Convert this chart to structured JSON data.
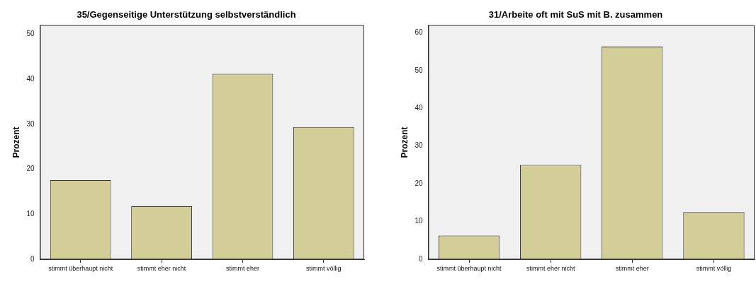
{
  "chart_data": [
    {
      "type": "bar",
      "title": "35/Gegenseitige Unterstützung selbstverständlich",
      "ylabel": "Prozent",
      "categories": [
        "stimmt überhaupt nicht",
        "stimmt eher nicht",
        "stimmt eher",
        "stimmt völlig"
      ],
      "values": [
        17.6,
        11.8,
        41.2,
        29.4
      ],
      "color": "#d3ce97",
      "ylim": [
        0,
        52
      ],
      "yticks": [
        0,
        10,
        20,
        30,
        40,
        50
      ],
      "grid": false,
      "legend": false
    },
    {
      "type": "bar",
      "title": "31/Arbeite oft mit SuS mit B. zusammen",
      "ylabel": "Prozent",
      "categories": [
        "stimmt überhaupt nicht",
        "stimmt eher nicht",
        "stimmt eher",
        "stimmt völlig"
      ],
      "values": [
        6.3,
        25,
        56.3,
        12.5
      ],
      "color": "#d3ce97",
      "ylim": [
        0,
        62
      ],
      "yticks": [
        0,
        10,
        20,
        30,
        40,
        50,
        60
      ],
      "grid": false,
      "legend": false
    }
  ]
}
